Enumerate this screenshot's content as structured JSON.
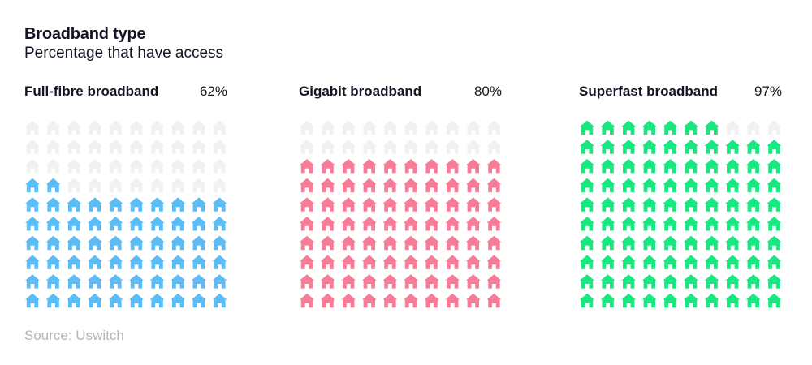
{
  "header": {
    "title": "Broadband type",
    "subtitle": "Percentage that have access"
  },
  "source": "Source: Uswitch",
  "icon": "house-icon",
  "colors": {
    "inactive": "#f1f1f1"
  },
  "chart_data": [
    {
      "type": "waffle",
      "label": "Full-fibre broadband",
      "value_label": "62%",
      "value": 62,
      "total": 100,
      "color": "#5bbcf6"
    },
    {
      "type": "waffle",
      "label": "Gigabit broadband",
      "value_label": "80%",
      "value": 80,
      "total": 100,
      "color": "#f87c98"
    },
    {
      "type": "waffle",
      "label": "Superfast broadband",
      "value_label": "97%",
      "value": 97,
      "total": 100,
      "color": "#19e880"
    }
  ]
}
